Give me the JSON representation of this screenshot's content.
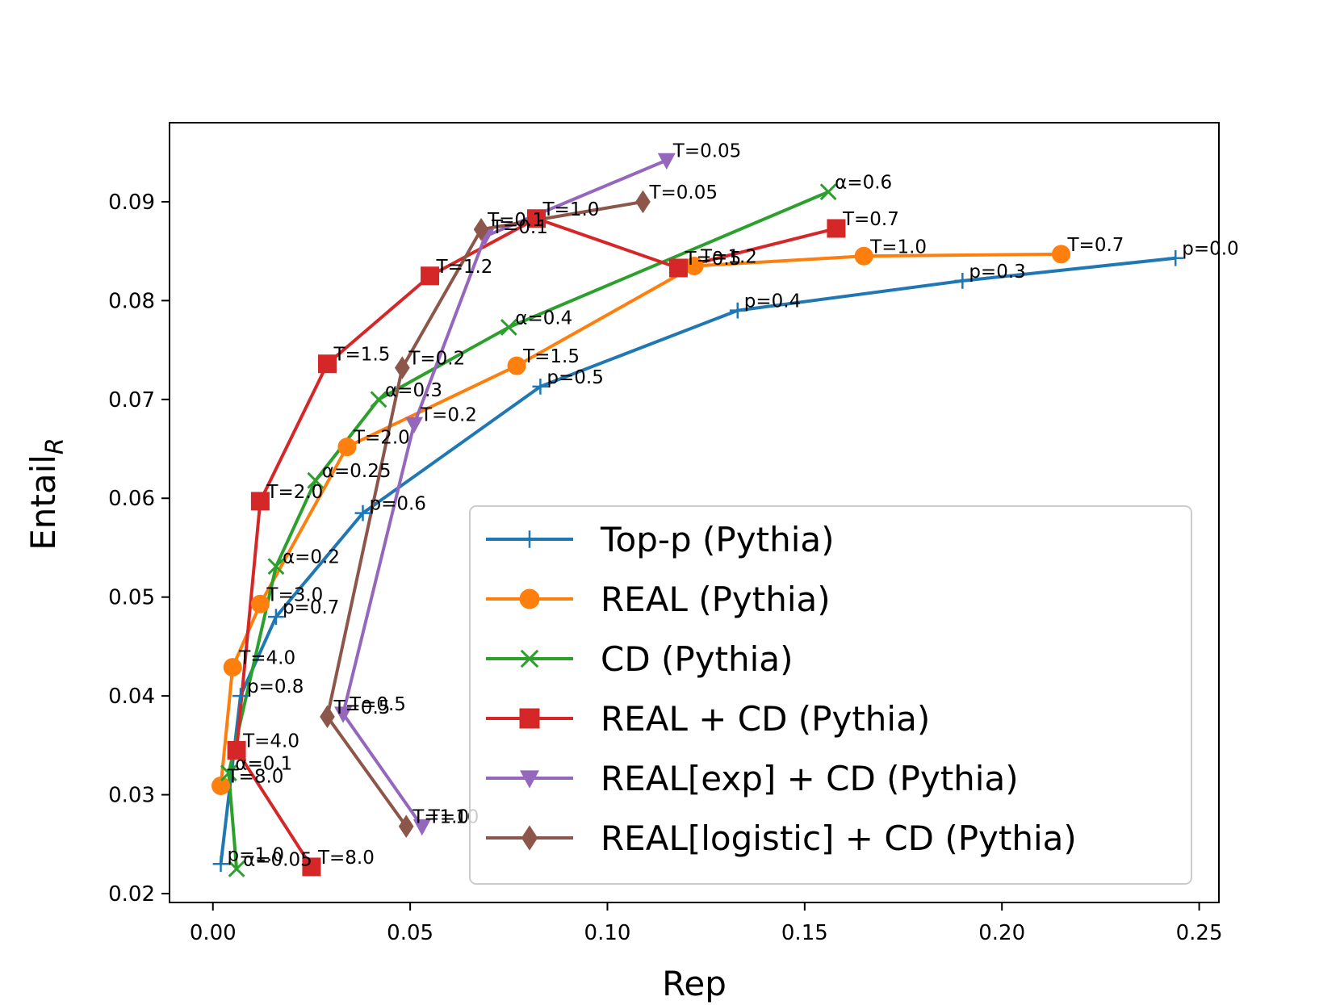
{
  "chart_data": {
    "type": "line",
    "xlabel": "Rep",
    "ylabel": "Entail",
    "ylabel_subscript": "R",
    "xlim": [
      -0.011,
      0.255
    ],
    "ylim": [
      0.0191,
      0.098
    ],
    "xticks": [
      0.0,
      0.05,
      0.1,
      0.15,
      0.2,
      0.25
    ],
    "xtick_labels": [
      "0.00",
      "0.05",
      "0.10",
      "0.15",
      "0.20",
      "0.25"
    ],
    "yticks": [
      0.02,
      0.03,
      0.04,
      0.05,
      0.06,
      0.07,
      0.08,
      0.09
    ],
    "ytick_labels": [
      "0.02",
      "0.03",
      "0.04",
      "0.05",
      "0.06",
      "0.07",
      "0.08",
      "0.09"
    ],
    "grid": false,
    "legend_position": "lower-right",
    "series": [
      {
        "name": "Top-p (Pythia)",
        "color": "#1f77b4",
        "marker": "plus",
        "points": [
          {
            "x": 0.002,
            "y": 0.023,
            "label": "p=1.0"
          },
          {
            "x": 0.007,
            "y": 0.04,
            "label": "p=0.8"
          },
          {
            "x": 0.016,
            "y": 0.048,
            "label": "p=0.7"
          },
          {
            "x": 0.038,
            "y": 0.0585,
            "label": "p=0.6"
          },
          {
            "x": 0.083,
            "y": 0.0713,
            "label": "p=0.5"
          },
          {
            "x": 0.133,
            "y": 0.079,
            "label": "p=0.4"
          },
          {
            "x": 0.19,
            "y": 0.082,
            "label": "p=0.3"
          },
          {
            "x": 0.244,
            "y": 0.0843,
            "label": "p=0.0"
          }
        ]
      },
      {
        "name": "REAL (Pythia)",
        "color": "#ff7f0e",
        "marker": "circle",
        "points": [
          {
            "x": 0.002,
            "y": 0.0309,
            "label": "T=8.0"
          },
          {
            "x": 0.005,
            "y": 0.0429,
            "label": "T=4.0"
          },
          {
            "x": 0.012,
            "y": 0.0493,
            "label": "T=3.0"
          },
          {
            "x": 0.034,
            "y": 0.0652,
            "label": "T=2.0"
          },
          {
            "x": 0.077,
            "y": 0.0734,
            "label": "T=1.5"
          },
          {
            "x": 0.122,
            "y": 0.0835,
            "label": "T=1.2"
          },
          {
            "x": 0.165,
            "y": 0.0845,
            "label": "T=1.0"
          },
          {
            "x": 0.215,
            "y": 0.0847,
            "label": "T=0.7"
          }
        ]
      },
      {
        "name": "CD (Pythia)",
        "color": "#2ca02c",
        "marker": "x",
        "points": [
          {
            "x": 0.006,
            "y": 0.0225,
            "label": "α=0.05"
          },
          {
            "x": 0.004,
            "y": 0.0322,
            "label": "α=0.1"
          },
          {
            "x": 0.016,
            "y": 0.0531,
            "label": "α=0.2"
          },
          {
            "x": 0.026,
            "y": 0.0618,
            "label": "α=0.25"
          },
          {
            "x": 0.042,
            "y": 0.07,
            "label": "α=0.3"
          },
          {
            "x": 0.075,
            "y": 0.0773,
            "label": "α=0.4"
          },
          {
            "x": 0.156,
            "y": 0.091,
            "label": "α=0.6"
          }
        ]
      },
      {
        "name": "REAL + CD (Pythia)",
        "color": "#d62728",
        "marker": "square",
        "points": [
          {
            "x": 0.025,
            "y": 0.0227,
            "label": "T=8.0"
          },
          {
            "x": 0.006,
            "y": 0.0345,
            "label": "T=4.0"
          },
          {
            "x": 0.012,
            "y": 0.0597,
            "label": "T=2.0"
          },
          {
            "x": 0.029,
            "y": 0.0736,
            "label": "T=1.5"
          },
          {
            "x": 0.055,
            "y": 0.0825,
            "label": "T=1.2"
          },
          {
            "x": 0.082,
            "y": 0.0883,
            "label": "T=1.0"
          },
          {
            "x": 0.118,
            "y": 0.0833,
            "label": "T=0.5"
          },
          {
            "x": 0.158,
            "y": 0.0873,
            "label": "T=0.7"
          }
        ]
      },
      {
        "name": "REAL[exp] + CD (Pythia)",
        "color": "#9467bd",
        "marker": "triangle-down",
        "points": [
          {
            "x": 0.053,
            "y": 0.0268,
            "label": "T=10"
          },
          {
            "x": 0.033,
            "y": 0.0382,
            "label": "T=0.5"
          },
          {
            "x": 0.051,
            "y": 0.0675,
            "label": "T=0.2"
          },
          {
            "x": 0.069,
            "y": 0.0865,
            "label": "T=0.1"
          },
          {
            "x": 0.115,
            "y": 0.0942,
            "label": "T=0.05"
          }
        ]
      },
      {
        "name": "REAL[logistic] + CD (Pythia)",
        "color": "#8c564b",
        "marker": "diamond",
        "points": [
          {
            "x": 0.049,
            "y": 0.0268,
            "label": "T=1.0"
          },
          {
            "x": 0.029,
            "y": 0.0379,
            "label": "T=0.5"
          },
          {
            "x": 0.048,
            "y": 0.0732,
            "label": "T=0.2"
          },
          {
            "x": 0.068,
            "y": 0.0872,
            "label": "T=0.1"
          },
          {
            "x": 0.109,
            "y": 0.09,
            "label": "T=0.05"
          }
        ]
      }
    ]
  }
}
